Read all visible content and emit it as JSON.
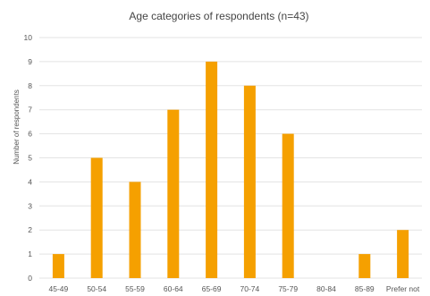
{
  "chart_data": {
    "type": "bar",
    "title": "Age categories of respondents (n=43)",
    "xlabel": "",
    "ylabel": "Number of respondents",
    "categories": [
      "45-49",
      "50-54",
      "55-59",
      "60-64",
      "65-69",
      "70-74",
      "75-79",
      "80-84",
      "85-89",
      "Prefer not to say"
    ],
    "category_labels_visible": [
      "45-49",
      "50-54",
      "55-59",
      "60-64",
      "65-69",
      "70-74",
      "75-79",
      "80-84",
      "85-89",
      "Prefer not"
    ],
    "values": [
      1,
      5,
      4,
      7,
      9,
      8,
      6,
      0,
      1,
      2
    ],
    "ylim": [
      0,
      10
    ],
    "yticks": [
      0,
      1,
      2,
      3,
      4,
      5,
      6,
      7,
      8,
      9,
      10
    ],
    "grid": true,
    "legend": "none",
    "bar_color": "#F5A000"
  }
}
